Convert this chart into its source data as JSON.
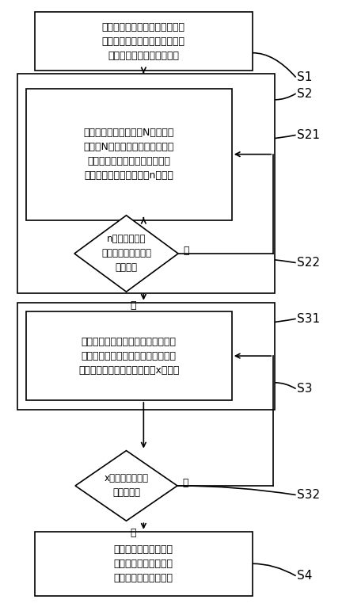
{
  "figsize": [
    4.37,
    7.71
  ],
  "dpi": 100,
  "bg_color": "#ffffff",
  "box_edge_color": "#000000",
  "box_face_color": "#ffffff",
  "arrow_color": "#000000",
  "text_color": "#000000",
  "font_size": 9.0,
  "label_font_size": 11.0,
  "lw": 1.2,
  "s1_text": "接收外部系统提交的用户总列表\n和任务内容，并将所述用户总列\n表和所述任务内容进行关联",
  "s2i_text": "所述用户总列表共包含N个用户，\n对所述N个用户进行预拆分，得到\n多个预拆分用户分列表，单个预\n拆分用户分列表内共包含n个用户",
  "d1_text": "n是否大于最大\n可处理用户量的数值\n的一百倍",
  "s31_text": "对所述预拆分用户分列表进行真实拆\n分，得到相应的多个真实用户分列表\n，所述真实用户分列表共包含x个用户",
  "d2_text": "x是否大于最大可\n处理用户量",
  "s4_text": "对所述多个真实用户分\n列表内的用户按照所述\n任务内容同步进行处理",
  "yes_text": "是",
  "no_text": "否",
  "s1_label": "S1",
  "s2_label": "S2",
  "s21_label": "S21",
  "s22_label": "S22",
  "s31_label": "S31",
  "s3_label": "S3",
  "s32_label": "S32",
  "s4_label": "S4"
}
